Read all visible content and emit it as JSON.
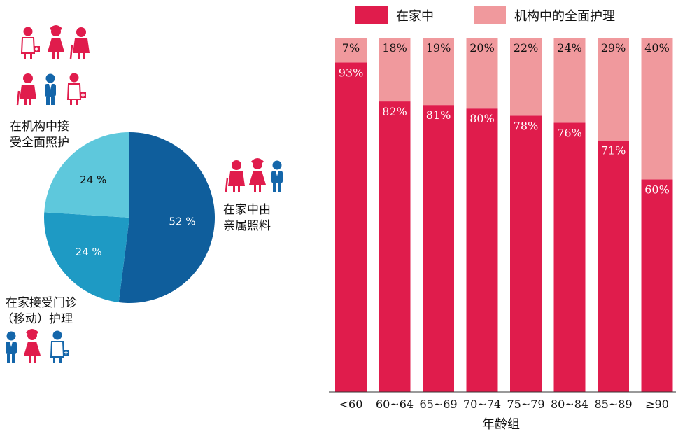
{
  "colors": {
    "home": "#e01c4c",
    "institution": "#f0999d",
    "pie_dark": "#0f5e9c",
    "pie_mid": "#1e9ac4",
    "pie_light": "#5ec8dc",
    "figure_red": "#e01c4c",
    "figure_blue": "#1466aa"
  },
  "icons": {
    "group_institution": "elderly-and-nurse-figures-icon",
    "group_family": "elderly-couple-with-family-icon",
    "group_outpatient": "elderly-with-doctor-icon"
  },
  "chart_data": [
    {
      "type": "pie",
      "slices": [
        {
          "label": "在家中由亲属照料",
          "label_lines": [
            "在家中由",
            "亲属照料"
          ],
          "value": 52,
          "value_label": "52 %",
          "color": "#0f5e9c"
        },
        {
          "label": "在家接受门诊（移动）护理",
          "label_lines": [
            "在家接受门诊",
            "（移动）护理"
          ],
          "value": 24,
          "value_label": "24 %",
          "color": "#1e9ac4"
        },
        {
          "label": "在机构中接受全面照护",
          "label_lines": [
            "在机构中接",
            "受全面照护"
          ],
          "value": 24,
          "value_label": "24 %",
          "color": "#5ec8dc"
        }
      ]
    },
    {
      "type": "bar",
      "stacked": true,
      "xlabel": "年龄组",
      "categories": [
        "<60",
        "60~64",
        "65~69",
        "70~74",
        "75~79",
        "80~84",
        "85~89",
        "≥90"
      ],
      "series": [
        {
          "name": "在家中",
          "values": [
            93,
            82,
            81,
            80,
            78,
            76,
            71,
            60
          ],
          "labels": [
            "93%",
            "82%",
            "81%",
            "80%",
            "78%",
            "76%",
            "71%",
            "60%"
          ],
          "color": "#e01c4c"
        },
        {
          "name": "机构中的全面护理",
          "values": [
            7,
            18,
            19,
            20,
            22,
            24,
            29,
            40
          ],
          "labels": [
            "7%",
            "18%",
            "19%",
            "20%",
            "22%",
            "24%",
            "29%",
            "40%"
          ],
          "color": "#f0999d"
        }
      ],
      "ylim": [
        0,
        100
      ],
      "legend": "top"
    }
  ]
}
